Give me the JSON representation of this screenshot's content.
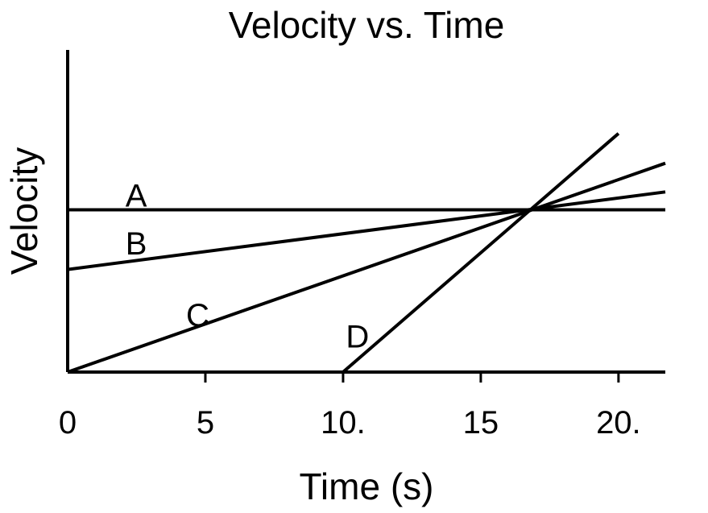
{
  "chart_data": {
    "type": "line",
    "title": "Velocity vs. Time",
    "xlabel": "Time (s)",
    "ylabel": "Velocity",
    "xlim": [
      0,
      21.7
    ],
    "ylim": [
      0,
      1.35
    ],
    "x_ticks": [
      0,
      5,
      10,
      15,
      20
    ],
    "x_tick_labels": [
      "0",
      "5",
      "10.",
      "15",
      "20."
    ],
    "grid": false,
    "legend": "none",
    "series": [
      {
        "name": "A",
        "x": [
          0,
          21.7
        ],
        "y": [
          0.68,
          0.68
        ]
      },
      {
        "name": "B",
        "x": [
          0,
          21.7
        ],
        "y": [
          0.43,
          0.755
        ]
      },
      {
        "name": "C",
        "x": [
          0,
          21.7
        ],
        "y": [
          0.0,
          0.875
        ]
      },
      {
        "name": "D",
        "x": [
          10,
          20
        ],
        "y": [
          0.0,
          1.0
        ]
      }
    ],
    "series_label_pos": [
      {
        "x": 2.1,
        "y": 0.74
      },
      {
        "x": 2.1,
        "y": 0.54
      },
      {
        "x": 4.3,
        "y": 0.24
      },
      {
        "x": 10.1,
        "y": 0.15
      }
    ],
    "colors": {
      "line": "#000000",
      "background": "#ffffff"
    }
  }
}
